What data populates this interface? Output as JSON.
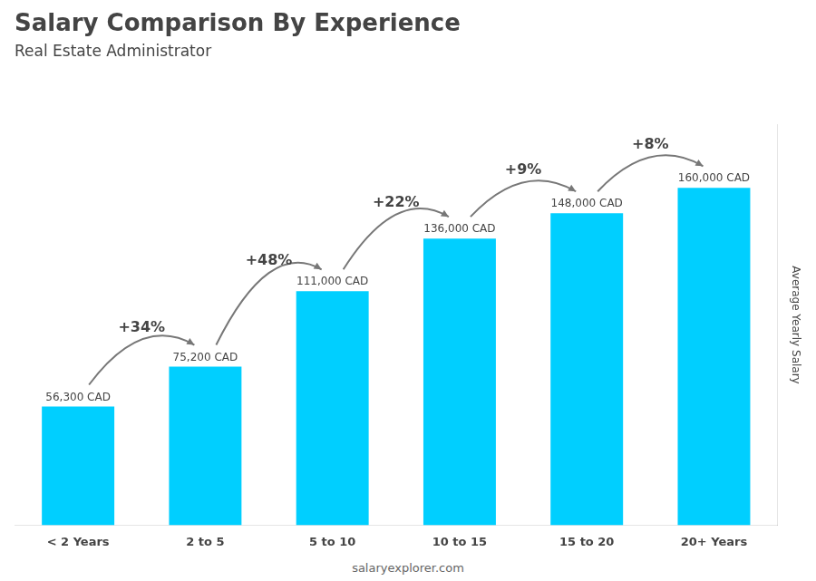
{
  "chart_data": {
    "type": "bar",
    "title": "Salary Comparison By Experience",
    "subtitle": "Real Estate Administrator",
    "ylabel": "Average Yearly Salary",
    "footer": "salaryexplorer.com",
    "categories": [
      "< 2 Years",
      "2 to 5",
      "5 to 10",
      "10 to 15",
      "15 to 20",
      "20+ Years"
    ],
    "values": [
      56300,
      75200,
      111000,
      136000,
      148000,
      160000
    ],
    "value_labels": [
      "56,300 CAD",
      "75,200 CAD",
      "111,000 CAD",
      "136,000 CAD",
      "148,000 CAD",
      "160,000 CAD"
    ],
    "data_labels": true,
    "annotations": [
      "+34%",
      "+48%",
      "+22%",
      "+9%",
      "+8%"
    ],
    "color": "#00cfff",
    "ylim": [
      0,
      190000
    ],
    "grid": false,
    "legend": false,
    "tick_labels": "x"
  }
}
